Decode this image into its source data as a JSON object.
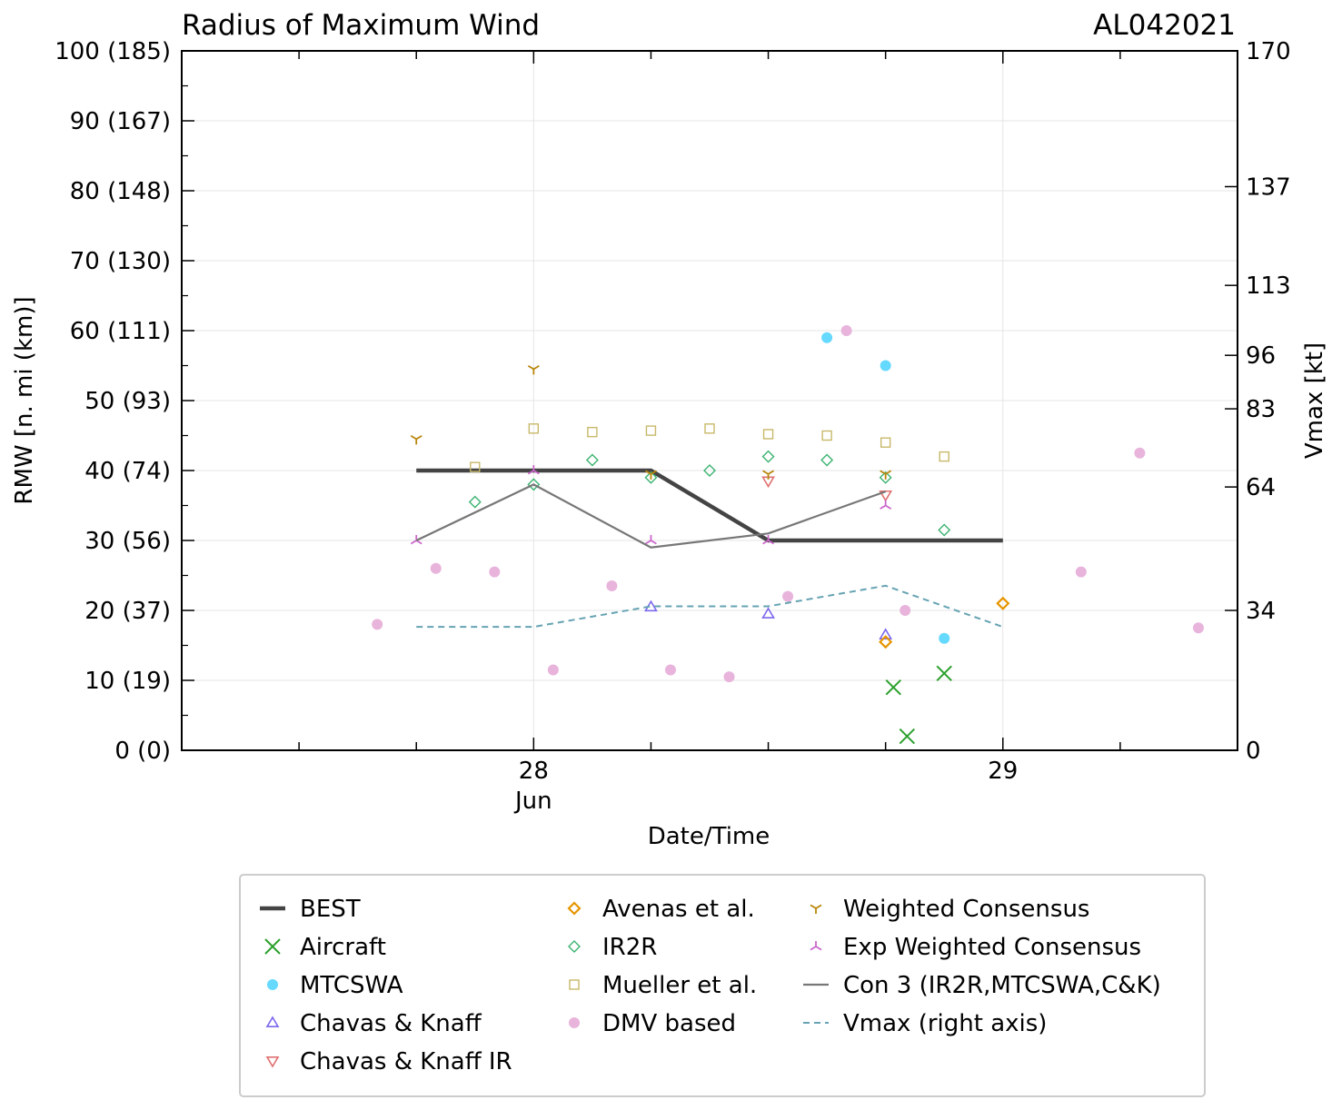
{
  "chart_data": {
    "type": "scatter",
    "title": "Radius of Maximum Wind",
    "storm_id": "AL042021",
    "xlabel": "Date/Time",
    "ylabel": "RMW [n. mi (km)]",
    "y2label": "Vmax [kt]",
    "x_unit": "hours since 2021-06-28 00Z",
    "xlim": [
      -18,
      36
    ],
    "ylim": [
      0,
      100
    ],
    "x_ticks": [
      {
        "x": 0,
        "label": "28",
        "sublabel": "Jun"
      },
      {
        "x": 24,
        "label": "29",
        "sublabel": ""
      }
    ],
    "y_ticks": [
      {
        "v": 0,
        "label": "0 (0)"
      },
      {
        "v": 10,
        "label": "10 (19)"
      },
      {
        "v": 20,
        "label": "20 (37)"
      },
      {
        "v": 30,
        "label": "30 (56)"
      },
      {
        "v": 40,
        "label": "40 (74)"
      },
      {
        "v": 50,
        "label": "50 (93)"
      },
      {
        "v": 60,
        "label": "60 (111)"
      },
      {
        "v": 70,
        "label": "70 (130)"
      },
      {
        "v": 80,
        "label": "80 (148)"
      },
      {
        "v": 90,
        "label": "90 (167)"
      },
      {
        "v": 100,
        "label": "100 (185)"
      }
    ],
    "y2_ticks": [
      {
        "v": 0,
        "label": "0"
      },
      {
        "v": 34,
        "label": "34"
      },
      {
        "v": 64,
        "label": "64"
      },
      {
        "v": 83,
        "label": "83"
      },
      {
        "v": 96,
        "label": "96"
      },
      {
        "v": 113,
        "label": "113"
      },
      {
        "v": 137,
        "label": "137"
      },
      {
        "v": 170,
        "label": "170"
      }
    ],
    "y2lim": [
      0,
      170
    ],
    "series": [
      {
        "name": "BEST",
        "marker": "line",
        "color": "#444444",
        "x": [
          -6,
          0,
          6,
          12,
          18,
          24
        ],
        "y": [
          40,
          40,
          40,
          30,
          30,
          30
        ]
      },
      {
        "name": "Aircraft",
        "marker": "x",
        "color": "#2ca02c",
        "x": [
          18.4,
          19.1,
          21
        ],
        "y": [
          9,
          2,
          11
        ]
      },
      {
        "name": "MTCSWA",
        "marker": "circle",
        "color": "#66d9ff",
        "x": [
          15,
          18,
          21
        ],
        "y": [
          59,
          55,
          16
        ]
      },
      {
        "name": "Chavas & Knaff",
        "marker": "triangle-up",
        "color": "#7b68ee",
        "x": [
          6,
          12,
          18
        ],
        "y": [
          20.5,
          19.5,
          16.5
        ]
      },
      {
        "name": "Chavas & Knaff IR",
        "marker": "triangle-down",
        "color": "#e07070",
        "x": [
          12,
          18
        ],
        "y": [
          38.5,
          36.5
        ]
      },
      {
        "name": "Avenas et al.",
        "marker": "diamond",
        "color": "#e69500",
        "x": [
          18,
          24
        ],
        "y": [
          15.5,
          21
        ]
      },
      {
        "name": "IR2R",
        "marker": "diamond-open",
        "color": "#3cb371",
        "x": [
          -3,
          0,
          3,
          6,
          9,
          12,
          15,
          18,
          21
        ],
        "y": [
          35.5,
          38,
          41.5,
          39,
          40,
          42,
          41.5,
          39,
          31.5
        ]
      },
      {
        "name": "Mueller et al.",
        "marker": "square",
        "color": "#c8b86a",
        "x": [
          -3,
          0,
          3,
          6,
          9,
          12,
          15,
          18,
          21
        ],
        "y": [
          40.5,
          46,
          45.5,
          45.7,
          46,
          45.2,
          45,
          44,
          42
        ]
      },
      {
        "name": "DMV based",
        "marker": "dot",
        "color": "#e8b4dc",
        "x": [
          -8,
          -5,
          -2,
          1,
          4,
          7,
          10,
          13,
          16,
          19,
          28,
          31,
          34
        ],
        "y": [
          18,
          26,
          25.5,
          11.5,
          23.5,
          11.5,
          10.5,
          22,
          60,
          20,
          25.5,
          42.5,
          17.5
        ]
      },
      {
        "name": "Weighted Consensus",
        "marker": "tri-down",
        "color": "#b8860b",
        "x": [
          -6,
          0,
          6,
          12,
          18
        ],
        "y": [
          44.5,
          54.5,
          39.5,
          39.5,
          39.5
        ]
      },
      {
        "name": "Exp Weighted Consensus",
        "marker": "tri-up",
        "color": "#cc66cc",
        "x": [
          -6,
          0,
          6,
          12,
          18
        ],
        "y": [
          30,
          40,
          30,
          30,
          35
        ]
      },
      {
        "name": "Con 3 (IR2R,MTCSWA,C&K)",
        "marker": "line",
        "color": "#777777",
        "x": [
          -6,
          0,
          6,
          12,
          18
        ],
        "y": [
          30,
          38,
          29,
          31,
          37
        ]
      },
      {
        "name": "Vmax (right axis)",
        "marker": "dashed",
        "color": "#66a3b3",
        "axis": "right",
        "x": [
          -6,
          0,
          6,
          12,
          18,
          24
        ],
        "y": [
          30,
          30,
          35,
          35,
          40,
          30
        ]
      }
    ],
    "legend_position": "bottom"
  }
}
